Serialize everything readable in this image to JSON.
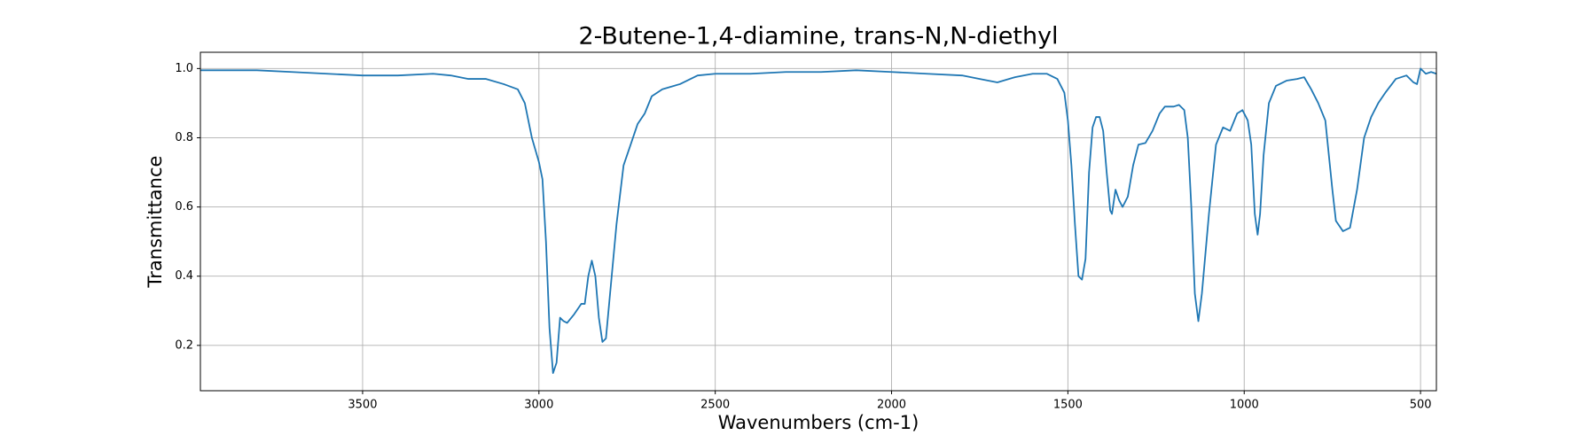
{
  "chart_data": {
    "type": "line",
    "title": "2-Butene-1,4-diamine, trans-N,N-diethyl",
    "xlabel": "Wavenumbers (cm-1)",
    "ylabel": "Transmittance",
    "xlim": [
      3960,
      455
    ],
    "ylim": [
      0.069,
      1.047
    ],
    "xticks": [
      3500,
      3000,
      2500,
      2000,
      1500,
      1000,
      500
    ],
    "yticks": [
      0.2,
      0.4,
      0.6,
      0.8,
      {
        "value": 1,
        "label": "1.0"
      }
    ],
    "grid": true,
    "series": [
      {
        "name": "2-Butene-1,4-diamine, trans-N,N-diethyl",
        "color": "#1f77b4",
        "x": [
          3960,
          3900,
          3800,
          3700,
          3600,
          3500,
          3400,
          3300,
          3250,
          3200,
          3150,
          3100,
          3060,
          3040,
          3020,
          3000,
          2990,
          2980,
          2970,
          2960,
          2950,
          2940,
          2930,
          2920,
          2900,
          2880,
          2870,
          2860,
          2850,
          2840,
          2830,
          2820,
          2810,
          2800,
          2780,
          2760,
          2740,
          2720,
          2700,
          2680,
          2650,
          2600,
          2550,
          2500,
          2400,
          2300,
          2200,
          2100,
          2000,
          1900,
          1800,
          1750,
          1700,
          1650,
          1600,
          1560,
          1530,
          1510,
          1500,
          1490,
          1480,
          1470,
          1460,
          1450,
          1440,
          1430,
          1420,
          1410,
          1400,
          1390,
          1380,
          1375,
          1365,
          1355,
          1345,
          1330,
          1315,
          1300,
          1280,
          1260,
          1240,
          1225,
          1200,
          1185,
          1170,
          1160,
          1150,
          1140,
          1130,
          1120,
          1100,
          1080,
          1060,
          1040,
          1020,
          1005,
          990,
          980,
          970,
          962,
          955,
          945,
          930,
          910,
          880,
          850,
          830,
          810,
          790,
          770,
          760,
          750,
          740,
          720,
          700,
          680,
          660,
          640,
          620,
          600,
          570,
          540,
          520,
          510,
          500,
          485,
          470,
          455
        ],
        "values": [
          0.995,
          0.995,
          0.995,
          0.99,
          0.985,
          0.98,
          0.98,
          0.985,
          0.98,
          0.97,
          0.97,
          0.955,
          0.94,
          0.9,
          0.8,
          0.73,
          0.68,
          0.5,
          0.25,
          0.12,
          0.15,
          0.28,
          0.27,
          0.265,
          0.29,
          0.32,
          0.32,
          0.4,
          0.445,
          0.4,
          0.28,
          0.21,
          0.22,
          0.33,
          0.55,
          0.72,
          0.78,
          0.84,
          0.87,
          0.92,
          0.94,
          0.955,
          0.98,
          0.985,
          0.985,
          0.99,
          0.99,
          0.995,
          0.99,
          0.985,
          0.98,
          0.97,
          0.96,
          0.975,
          0.985,
          0.985,
          0.97,
          0.93,
          0.85,
          0.72,
          0.55,
          0.4,
          0.39,
          0.45,
          0.7,
          0.83,
          0.86,
          0.86,
          0.82,
          0.7,
          0.59,
          0.58,
          0.65,
          0.62,
          0.6,
          0.63,
          0.72,
          0.78,
          0.785,
          0.82,
          0.87,
          0.89,
          0.89,
          0.895,
          0.88,
          0.8,
          0.6,
          0.35,
          0.27,
          0.35,
          0.58,
          0.78,
          0.83,
          0.82,
          0.87,
          0.88,
          0.85,
          0.78,
          0.58,
          0.52,
          0.58,
          0.75,
          0.9,
          0.95,
          0.965,
          0.97,
          0.975,
          0.94,
          0.9,
          0.85,
          0.75,
          0.65,
          0.56,
          0.53,
          0.54,
          0.65,
          0.8,
          0.86,
          0.9,
          0.93,
          0.97,
          0.98,
          0.96,
          0.955,
          1.0,
          0.985,
          0.99,
          0.985
        ]
      }
    ]
  }
}
